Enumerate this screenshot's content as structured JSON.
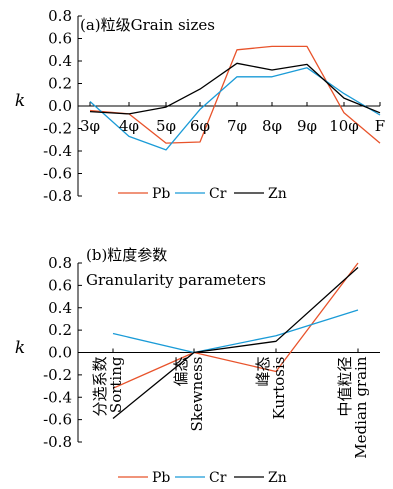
{
  "chart_data": [
    {
      "type": "line",
      "title": "(a)粒级Grain sizes",
      "ylabel": "k",
      "xlabel": "",
      "ylim": [
        -0.8,
        0.8
      ],
      "yticks": [
        0.8,
        0.6,
        0.4,
        0.2,
        0.0,
        -0.2,
        -0.4,
        -0.6,
        -0.8
      ],
      "ytick_labels": [
        "0.8",
        "0.6",
        "0.4",
        "0.2",
        "0.0",
        "-0.2",
        "-0.4",
        "-0.6",
        "-0.8"
      ],
      "categories": [
        "3φ",
        "4φ",
        "5φ",
        "6φ",
        "7φ",
        "8φ",
        "9φ",
        "10φ",
        "F"
      ],
      "legend_position": "bottom",
      "series": [
        {
          "name": "Pb",
          "color": "#e8532b",
          "values": [
            -0.04,
            -0.07,
            -0.33,
            -0.32,
            0.5,
            0.53,
            0.53,
            -0.06,
            -0.33
          ]
        },
        {
          "name": "Cr",
          "color": "#1a9bd7",
          "values": [
            0.04,
            -0.27,
            -0.39,
            -0.03,
            0.26,
            0.26,
            0.34,
            0.11,
            -0.08
          ]
        },
        {
          "name": "Zn",
          "color": "#000000",
          "values": [
            -0.05,
            -0.07,
            -0.01,
            0.15,
            0.38,
            0.32,
            0.37,
            0.07,
            -0.06
          ]
        }
      ]
    },
    {
      "type": "line",
      "title": "(b)粒度参数",
      "subtitle": "Granularity parameters",
      "ylabel": "k",
      "xlabel": "",
      "ylim": [
        -0.8,
        0.8
      ],
      "yticks": [
        0.8,
        0.6,
        0.4,
        0.2,
        0.0,
        -0.2,
        -0.4,
        -0.6,
        -0.8
      ],
      "ytick_labels": [
        "0.8",
        "0.6",
        "0.4",
        "0.2",
        "0.0",
        "-0.2",
        "-0.4",
        "-0.6",
        "-0.8"
      ],
      "categories": [
        {
          "zh": "分选系数",
          "en": "Sorting"
        },
        {
          "zh": "偏态",
          "en": "Skewness"
        },
        {
          "zh": "峰态",
          "en": "Kurtosis"
        },
        {
          "zh": "中值粒径",
          "en": "Median grain"
        }
      ],
      "legend_position": "bottom",
      "series": [
        {
          "name": "Pb",
          "color": "#e8532b",
          "values": [
            -0.32,
            0.0,
            -0.17,
            0.8
          ]
        },
        {
          "name": "Cr",
          "color": "#1a9bd7",
          "values": [
            0.17,
            0.0,
            0.15,
            0.38
          ]
        },
        {
          "name": "Zn",
          "color": "#000000",
          "values": [
            -0.59,
            0.0,
            0.1,
            0.76
          ]
        }
      ]
    }
  ]
}
